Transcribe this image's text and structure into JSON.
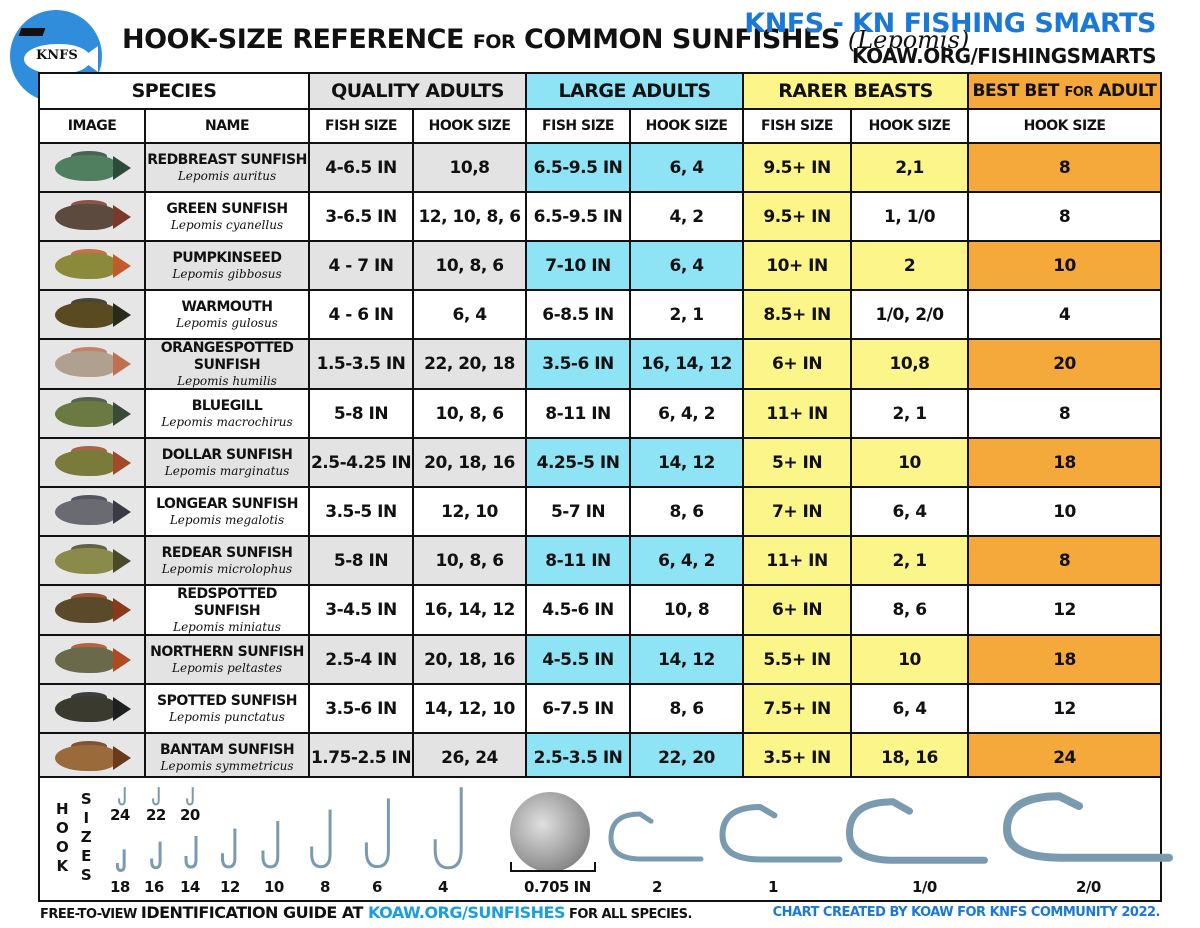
{
  "header": {
    "logo_text": "KNFS",
    "title_main": "HOOK-SIZE REFERENCE ",
    "title_small": "FOR",
    "title_rest": " COMMON SUNFISHES",
    "title_latin": "(Lepomis)",
    "brand": "KNFS - KN FISHING SMARTS",
    "site": "KOAW.ORG/FISHINGSMARTS"
  },
  "groups": {
    "species": "SPECIES",
    "quality": "QUALITY ADULTS",
    "large": "LARGE ADULTS",
    "rare": "RARER BEASTS",
    "best_a": "BEST BET ",
    "best_b": "FOR",
    "best_c": " ADULT"
  },
  "subheaders": {
    "image": "IMAGE",
    "name": "NAME",
    "q_fish": "FISH SIZE",
    "q_hook": "HOOK SIZE",
    "l_fish": "FISH SIZE",
    "l_hook": "HOOK SIZE",
    "r_fish": "FISH SIZE",
    "r_hook": "HOOK SIZE",
    "best_hook": "HOOK SIZE"
  },
  "colors": {
    "quality": "#e3e3e3",
    "large": "#8ee3f5",
    "rare": "#fbf58a",
    "best": "#f6a93b",
    "brand": "#1a78d6"
  },
  "rows": [
    {
      "name": "REDBREAST SUNFISH",
      "latin": "Lepomis auritus",
      "q_fish": "4-6.5 IN",
      "q_hook": "10,8",
      "l_fish": "6.5-9.5 IN",
      "l_hook": "6, 4",
      "r_fish": "9.5+ IN",
      "r_hook": "2,1",
      "best": "8",
      "highlight": true,
      "fish_color": "#4f7f5e",
      "fin_color": "#2d4a3a"
    },
    {
      "name": "GREEN SUNFISH",
      "latin": "Lepomis cyanellus",
      "q_fish": "3-6.5 IN",
      "q_hook": "12, 10, 8, 6",
      "l_fish": "6.5-9.5 IN",
      "l_hook": "4, 2",
      "r_fish": "9.5+ IN",
      "r_hook": "1, 1/0",
      "best": "8",
      "highlight": false,
      "fish_color": "#5d4a3e",
      "fin_color": "#7a3a2a"
    },
    {
      "name": "PUMPKINSEED",
      "latin": "Lepomis gibbosus",
      "q_fish": "4 - 7 IN",
      "q_hook": "10, 8, 6",
      "l_fish": "7-10 IN",
      "l_hook": "6, 4",
      "r_fish": "10+ IN",
      "r_hook": "2",
      "best": "10",
      "highlight": true,
      "fish_color": "#8a8a3a",
      "fin_color": "#c25a2a"
    },
    {
      "name": "WARMOUTH",
      "latin": "Lepomis gulosus",
      "q_fish": "4 - 6 IN",
      "q_hook": "6, 4",
      "l_fish": "6-8.5 IN",
      "l_hook": "2, 1",
      "r_fish": "8.5+ IN",
      "r_hook": "1/0, 2/0",
      "best": "4",
      "highlight": false,
      "fish_color": "#5a4a22",
      "fin_color": "#2a2a1a"
    },
    {
      "name": "ORANGESPOTTED SUNFISH",
      "latin": "Lepomis humilis",
      "q_fish": "1.5-3.5 IN",
      "q_hook": "22, 20, 18",
      "l_fish": "3.5-6 IN",
      "l_hook": "16, 14, 12",
      "r_fish": "6+ IN",
      "r_hook": "10,8",
      "best": "20",
      "highlight": true,
      "fish_color": "#b0a090",
      "fin_color": "#c07050"
    },
    {
      "name": "BLUEGILL",
      "latin": "Lepomis macrochirus",
      "q_fish": "5-8 IN",
      "q_hook": "10, 8, 6",
      "l_fish": "8-11 IN",
      "l_hook": "6, 4, 2",
      "r_fish": "11+ IN",
      "r_hook": "2, 1",
      "best": "8",
      "highlight": false,
      "fish_color": "#6a7a40",
      "fin_color": "#3a4a3a"
    },
    {
      "name": "DOLLAR SUNFISH",
      "latin": "Lepomis marginatus",
      "q_fish": "2.5-4.25 IN",
      "q_hook": "20, 18, 16",
      "l_fish": "4.25-5 IN",
      "l_hook": "14, 12",
      "r_fish": "5+ IN",
      "r_hook": "10",
      "best": "18",
      "highlight": true,
      "fish_color": "#7a7a3a",
      "fin_color": "#a04a2a"
    },
    {
      "name": "LONGEAR SUNFISH",
      "latin": "Lepomis megalotis",
      "q_fish": "3.5-5 IN",
      "q_hook": "12, 10",
      "l_fish": "5-7 IN",
      "l_hook": "8, 6",
      "r_fish": "7+ IN",
      "r_hook": "6, 4",
      "best": "10",
      "highlight": false,
      "fish_color": "#6a6a72",
      "fin_color": "#3a3a44"
    },
    {
      "name": "REDEAR SUNFISH",
      "latin": "Lepomis microlophus",
      "q_fish": "5-8 IN",
      "q_hook": "10, 8, 6",
      "l_fish": "8-11 IN",
      "l_hook": "6, 4, 2",
      "r_fish": "11+ IN",
      "r_hook": "2, 1",
      "best": "8",
      "highlight": true,
      "fish_color": "#8a8a4a",
      "fin_color": "#4a4a2a"
    },
    {
      "name": "REDSPOTTED SUNFISH",
      "latin": "Lepomis miniatus",
      "q_fish": "3-4.5 IN",
      "q_hook": "16, 14, 12",
      "l_fish": "4.5-6 IN",
      "l_hook": "10, 8",
      "r_fish": "6+ IN",
      "r_hook": "8, 6",
      "best": "12",
      "highlight": false,
      "fish_color": "#5a4a2a",
      "fin_color": "#8a3a1a"
    },
    {
      "name": "NORTHERN SUNFISH",
      "latin": "Lepomis peltastes",
      "q_fish": "2.5-4 IN",
      "q_hook": "20, 18, 16",
      "l_fish": "4-5.5 IN",
      "l_hook": "14, 12",
      "r_fish": "5.5+ IN",
      "r_hook": "10",
      "best": "18",
      "highlight": true,
      "fish_color": "#6a6a4a",
      "fin_color": "#b04a22"
    },
    {
      "name": "SPOTTED SUNFISH",
      "latin": "Lepomis punctatus",
      "q_fish": "3.5-6 IN",
      "q_hook": "14, 12, 10",
      "l_fish": "6-7.5 IN",
      "l_hook": "8, 6",
      "r_fish": "7.5+ IN",
      "r_hook": "6, 4",
      "best": "12",
      "highlight": false,
      "fish_color": "#3a3a2e",
      "fin_color": "#1e2020"
    },
    {
      "name": "BANTAM SUNFISH",
      "latin": "Lepomis symmetricus",
      "q_fish": "1.75-2.5 IN",
      "q_hook": "26, 24",
      "l_fish": "2.5-3.5 IN",
      "l_hook": "22, 20",
      "r_fish": "3.5+ IN",
      "r_hook": "18, 16",
      "best": "24",
      "highlight": true,
      "fish_color": "#9a6a3a",
      "fin_color": "#6a3a1a"
    }
  ],
  "hook_panel": {
    "label_a": [
      "H",
      "O",
      "O",
      "K"
    ],
    "label_b": [
      "S",
      "I",
      "Z",
      "E",
      "S"
    ],
    "top_sizes": [
      "24",
      "22",
      "20"
    ],
    "bottom_sizes": [
      "18",
      "16",
      "14",
      "12",
      "10",
      "8",
      "6",
      "4"
    ],
    "dime_label": "0.705 IN",
    "large_sizes": [
      "2",
      "1",
      "1/0",
      "2/0"
    ]
  },
  "footer": {
    "left_a": "FREE-TO-VIEW ",
    "left_b": "IDENTIFICATION GUIDE AT ",
    "left_link": "KOAW.ORG/SUNFISHES",
    "left_c": " FOR ALL SPECIES.",
    "right": "CHART CREATED BY KOAW FOR KNFS COMMUNITY 2022."
  }
}
